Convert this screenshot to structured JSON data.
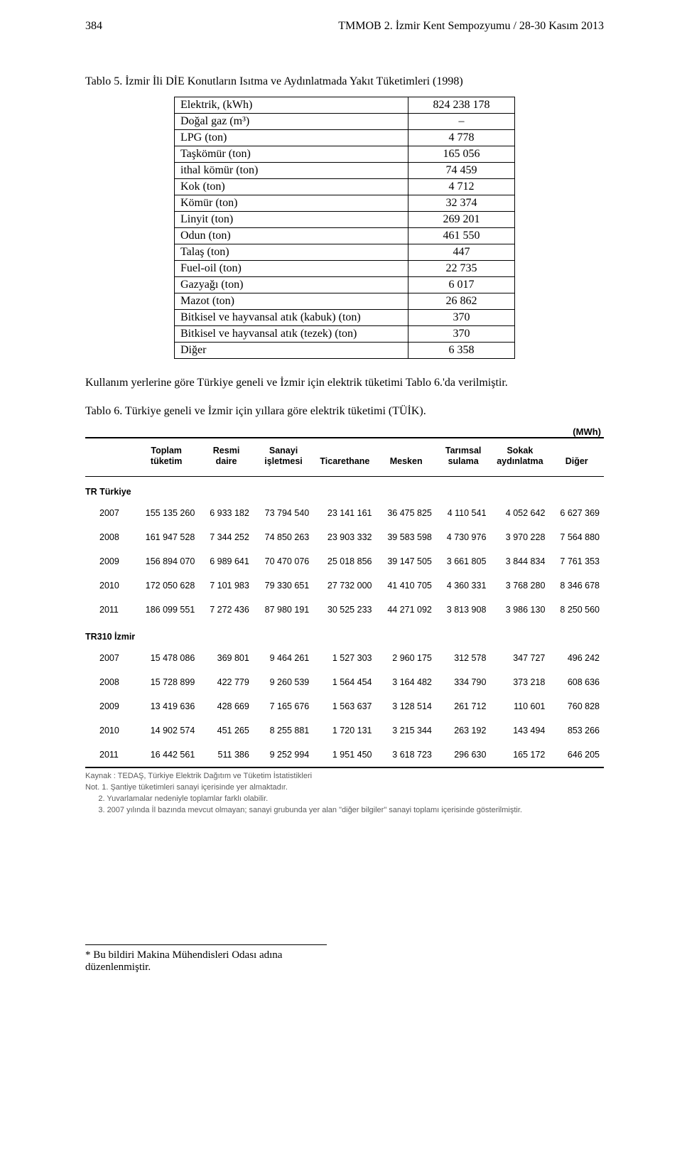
{
  "page": {
    "num": "384",
    "running": "TMMOB 2. İzmir Kent Sempozyumu / 28-30 Kasım 2013"
  },
  "t5": {
    "caption": "Tablo 5. İzmir İli DİE Konutların Isıtma ve Aydınlatmada Yakıt Tüketimleri (1998)",
    "rows": [
      {
        "label": "Elektrik, (kWh)",
        "value": "824 238 178"
      },
      {
        "label": "Doğal gaz (m³)",
        "value": "–"
      },
      {
        "label": "LPG (ton)",
        "value": "4 778"
      },
      {
        "label": "Taşkömür (ton)",
        "value": "165 056"
      },
      {
        "label": "ithal kömür (ton)",
        "value": "74 459"
      },
      {
        "label": "Kok (ton)",
        "value": "4 712"
      },
      {
        "label": "Kömür (ton)",
        "value": "32 374"
      },
      {
        "label": "Linyit (ton)",
        "value": "269 201"
      },
      {
        "label": "Odun (ton)",
        "value": "461 550"
      },
      {
        "label": "Talaş (ton)",
        "value": "447"
      },
      {
        "label": "Fuel-oil  (ton)",
        "value": "22 735"
      },
      {
        "label": "Gazyağı (ton)",
        "value": "6 017"
      },
      {
        "label": "Mazot (ton)",
        "value": "26 862"
      },
      {
        "label": "Bitkisel ve hayvansal atık (kabuk) (ton)",
        "value": "370"
      },
      {
        "label": "Bitkisel ve hayvansal atık (tezek) (ton)",
        "value": "370"
      },
      {
        "label": "Diğer",
        "value": "6 358"
      }
    ]
  },
  "p1": "Kullanım yerlerine göre Türkiye geneli ve İzmir için elektrik tüketimi Tablo 6.'da verilmiştir.",
  "t6": {
    "caption": "Tablo 6. Türkiye geneli ve İzmir için yıllara göre elektrik tüketimi (TÜİK).",
    "unit": "(MWh)",
    "headers": [
      "",
      "Toplam tüketim",
      "Resmi daire",
      "Sanayi işletmesi",
      "Ticarethane",
      "Mesken",
      "Tarımsal sulama",
      "Sokak aydınlatma",
      "Diğer"
    ],
    "regions": [
      {
        "name": "TR Türkiye",
        "rows": [
          [
            "2007",
            "155 135 260",
            "6 933 182",
            "73 794 540",
            "23 141 161",
            "36 475 825",
            "4 110 541",
            "4 052 642",
            "6 627 369"
          ],
          [
            "2008",
            "161 947 528",
            "7 344 252",
            "74 850 263",
            "23 903 332",
            "39 583 598",
            "4 730 976",
            "3 970 228",
            "7 564 880"
          ],
          [
            "2009",
            "156 894 070",
            "6 989 641",
            "70 470 076",
            "25 018 856",
            "39 147 505",
            "3 661 805",
            "3 844 834",
            "7 761 353"
          ],
          [
            "2010",
            "172 050 628",
            "7 101 983",
            "79 330 651",
            "27 732 000",
            "41 410 705",
            "4 360 331",
            "3 768 280",
            "8 346 678"
          ],
          [
            "2011",
            "186 099 551",
            "7 272 436",
            "87 980 191",
            "30 525 233",
            "44 271 092",
            "3 813 908",
            "3 986 130",
            "8 250 560"
          ]
        ]
      },
      {
        "name": "TR310 İzmir",
        "rows": [
          [
            "2007",
            "15 478 086",
            "369 801",
            "9 464 261",
            "1 527 303",
            "2 960 175",
            "312 578",
            "347 727",
            "496 242"
          ],
          [
            "2008",
            "15 728 899",
            "422 779",
            "9 260 539",
            "1 564 454",
            "3 164 482",
            "334 790",
            "373 218",
            "608 636"
          ],
          [
            "2009",
            "13 419 636",
            "428 669",
            "7 165 676",
            "1 563 637",
            "3 128 514",
            "261 712",
            "110 601",
            "760 828"
          ],
          [
            "2010",
            "14 902 574",
            "451 265",
            "8 255 881",
            "1 720 131",
            "3 215 344",
            "263 192",
            "143 494",
            "853 266"
          ],
          [
            "2011",
            "16 442 561",
            "511 386",
            "9 252 994",
            "1 951 450",
            "3 618 723",
            "296 630",
            "165 172",
            "646 205"
          ]
        ]
      }
    ],
    "notes": [
      "Kaynak : TEDAŞ, Türkiye Elektrik Dağıtım ve Tüketim İstatistikleri",
      "Not. 1. Şantiye tüketimleri sanayi içerisinde yer almaktadır.",
      "      2. Yuvarlamalar nedeniyle toplamlar farklı olabilir.",
      "      3. 2007 yılında İl bazında mevcut olmayan;  sanayi grubunda yer alan \"diğer bilgiler\" sanayi toplamı içerisinde gösterilmiştir."
    ]
  },
  "footer": "* Bu bildiri Makina Mühendisleri Odası adına düzenlenmiştir."
}
